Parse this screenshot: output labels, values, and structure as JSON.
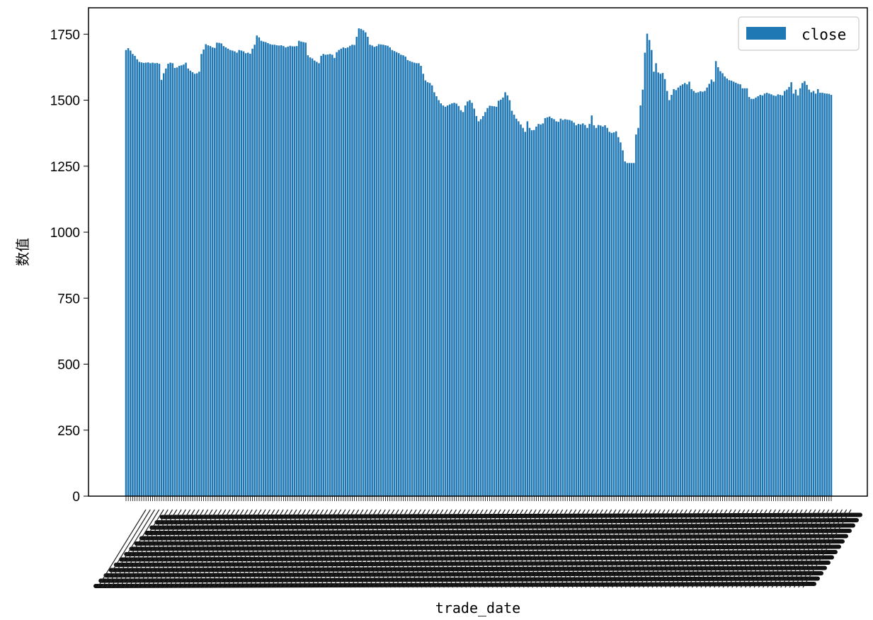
{
  "chart_data": {
    "type": "bar",
    "title": "",
    "xlabel": "trade_date",
    "ylabel": "数值",
    "ylim": [
      0,
      1850
    ],
    "yticks": [
      0,
      250,
      500,
      750,
      1000,
      1250,
      1500,
      1750
    ],
    "legend": {
      "placement": "top-right",
      "entries": [
        "close"
      ]
    },
    "grid": false,
    "bar_color": "#1f77b4",
    "x_tick_labels_legible": false,
    "series": [
      {
        "name": "close",
        "values": [
          1690,
          1697,
          1688,
          1675,
          1668,
          1655,
          1645,
          1643,
          1641,
          1642,
          1643,
          1640,
          1642,
          1640,
          1641,
          1638,
          1577,
          1602,
          1620,
          1638,
          1642,
          1640,
          1622,
          1624,
          1630,
          1632,
          1635,
          1642,
          1620,
          1612,
          1606,
          1600,
          1602,
          1608,
          1675,
          1692,
          1712,
          1708,
          1705,
          1700,
          1698,
          1718,
          1717,
          1715,
          1705,
          1700,
          1695,
          1690,
          1688,
          1685,
          1680,
          1690,
          1688,
          1685,
          1678,
          1680,
          1676,
          1695,
          1710,
          1745,
          1738,
          1725,
          1722,
          1720,
          1716,
          1712,
          1710,
          1710,
          1708,
          1707,
          1708,
          1705,
          1700,
          1703,
          1706,
          1704,
          1704,
          1705,
          1725,
          1722,
          1720,
          1718,
          1670,
          1662,
          1658,
          1650,
          1645,
          1640,
          1668,
          1675,
          1672,
          1673,
          1675,
          1672,
          1660,
          1682,
          1690,
          1695,
          1700,
          1697,
          1700,
          1706,
          1710,
          1709,
          1740,
          1772,
          1770,
          1765,
          1757,
          1740,
          1710,
          1707,
          1702,
          1705,
          1712,
          1711,
          1710,
          1708,
          1706,
          1700,
          1690,
          1686,
          1682,
          1678,
          1672,
          1670,
          1665,
          1652,
          1648,
          1645,
          1642,
          1640,
          1640,
          1630,
          1600,
          1575,
          1568,
          1565,
          1556,
          1530,
          1515,
          1500,
          1488,
          1480,
          1475,
          1480,
          1484,
          1488,
          1490,
          1487,
          1478,
          1462,
          1455,
          1480,
          1495,
          1500,
          1490,
          1468,
          1440,
          1420,
          1428,
          1440,
          1455,
          1470,
          1479,
          1478,
          1477,
          1475,
          1498,
          1502,
          1510,
          1530,
          1518,
          1500,
          1460,
          1445,
          1430,
          1420,
          1408,
          1395,
          1380,
          1420,
          1395,
          1386,
          1387,
          1400,
          1410,
          1408,
          1412,
          1432,
          1435,
          1438,
          1432,
          1428,
          1420,
          1418,
          1430,
          1425,
          1428,
          1426,
          1425,
          1422,
          1415,
          1405,
          1410,
          1408,
          1412,
          1406,
          1395,
          1410,
          1442,
          1405,
          1395,
          1406,
          1404,
          1400,
          1405,
          1395,
          1380,
          1376,
          1378,
          1382,
          1360,
          1340,
          1310,
          1268,
          1262,
          1262,
          1262,
          1262,
          1370,
          1395,
          1480,
          1540,
          1680,
          1752,
          1728,
          1690,
          1608,
          1640,
          1605,
          1600,
          1603,
          1580,
          1535,
          1500,
          1520,
          1542,
          1538,
          1548,
          1555,
          1560,
          1565,
          1560,
          1570,
          1542,
          1535,
          1528,
          1530,
          1534,
          1532,
          1535,
          1548,
          1562,
          1578,
          1570,
          1648,
          1625,
          1610,
          1602,
          1590,
          1582,
          1576,
          1574,
          1570,
          1566,
          1562,
          1560,
          1545,
          1545,
          1545,
          1512,
          1505,
          1505,
          1510,
          1515,
          1520,
          1518,
          1525,
          1528,
          1525,
          1522,
          1518,
          1516,
          1522,
          1520,
          1518,
          1535,
          1540,
          1550,
          1568,
          1525,
          1540,
          1518,
          1545,
          1565,
          1572,
          1558,
          1540,
          1530,
          1535,
          1525,
          1542,
          1528,
          1528,
          1526,
          1525,
          1524,
          1520
        ]
      }
    ]
  }
}
